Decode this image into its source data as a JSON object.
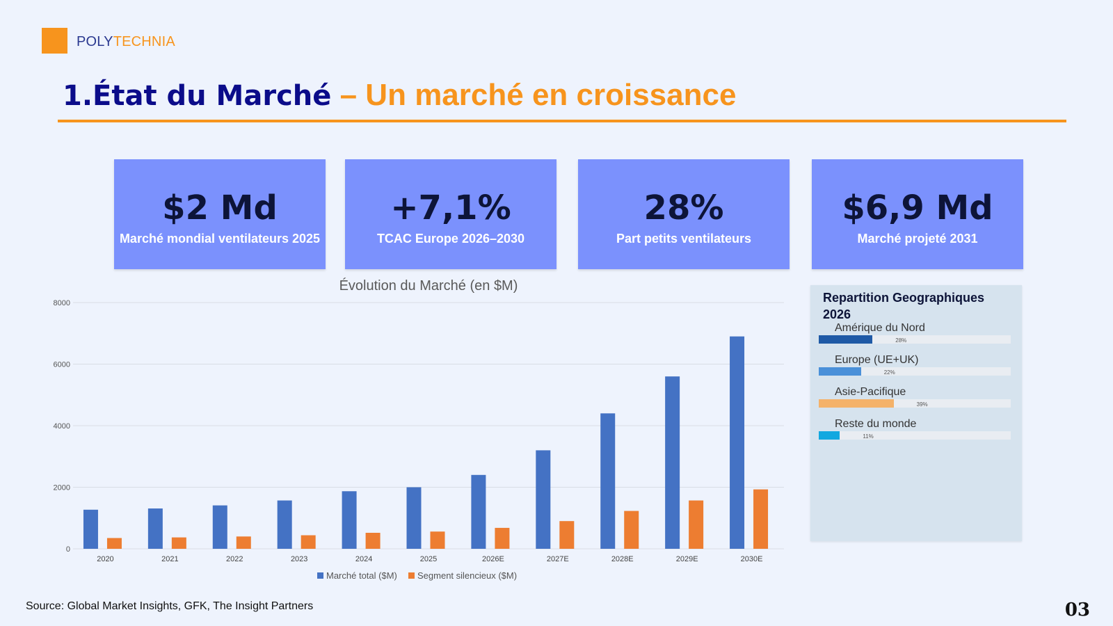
{
  "brand": {
    "part1": "POLY",
    "part2": "TECHNIA"
  },
  "title": {
    "part1": "1.État du Marché",
    "part2": " – Un marché en croissance"
  },
  "kpis": [
    {
      "value": "$2 Md",
      "label": "Marché mondial ventilateurs 2025"
    },
    {
      "value": "+7,1%",
      "label": "TCAC Europe 2026–2030"
    },
    {
      "value": "28%",
      "label": "Part petits ventilateurs"
    },
    {
      "value": "$6,9 Md",
      "label": "Marché projeté 2031"
    }
  ],
  "chart_data": {
    "type": "bar",
    "title": "Évolution du Marché (en $M)",
    "categories": [
      "2020",
      "2021",
      "2022",
      "2023",
      "2024",
      "2025",
      "2026E",
      "2027E",
      "2028E",
      "2029E",
      "2030E"
    ],
    "series": [
      {
        "name": "Marché total ($M)",
        "color": "#4472c4",
        "values": [
          1270,
          1310,
          1410,
          1570,
          1870,
          2000,
          2400,
          3200,
          4400,
          5600,
          6900
        ]
      },
      {
        "name": "Segment silencieux ($M)",
        "color": "#ed7d31",
        "values": [
          350,
          370,
          400,
          440,
          520,
          560,
          680,
          900,
          1230,
          1570,
          1930
        ]
      }
    ],
    "yticks": [
      "0",
      "2000",
      "4000",
      "6000",
      "8000"
    ],
    "ylim": [
      0,
      8000
    ],
    "legend": "bottom",
    "grid": true
  },
  "geo": {
    "title": "Repartition Geographiques 2026",
    "items": [
      {
        "label": "Amérique du Nord",
        "value": 28,
        "pct": "28%",
        "color": "#1f5aa6"
      },
      {
        "label": "Europe (UE+UK)",
        "value": 22,
        "pct": "22%",
        "color": "#4a90d9"
      },
      {
        "label": "Asie-Pacifique",
        "value": 39,
        "pct": "39%",
        "color": "#f4b26a"
      },
      {
        "label": "Reste du monde",
        "value": 11,
        "pct": "11%",
        "color": "#12a8e0"
      }
    ]
  },
  "footer": {
    "source": "Source: Global Market Insights, GFK, The Insight Partners",
    "page": "03"
  }
}
